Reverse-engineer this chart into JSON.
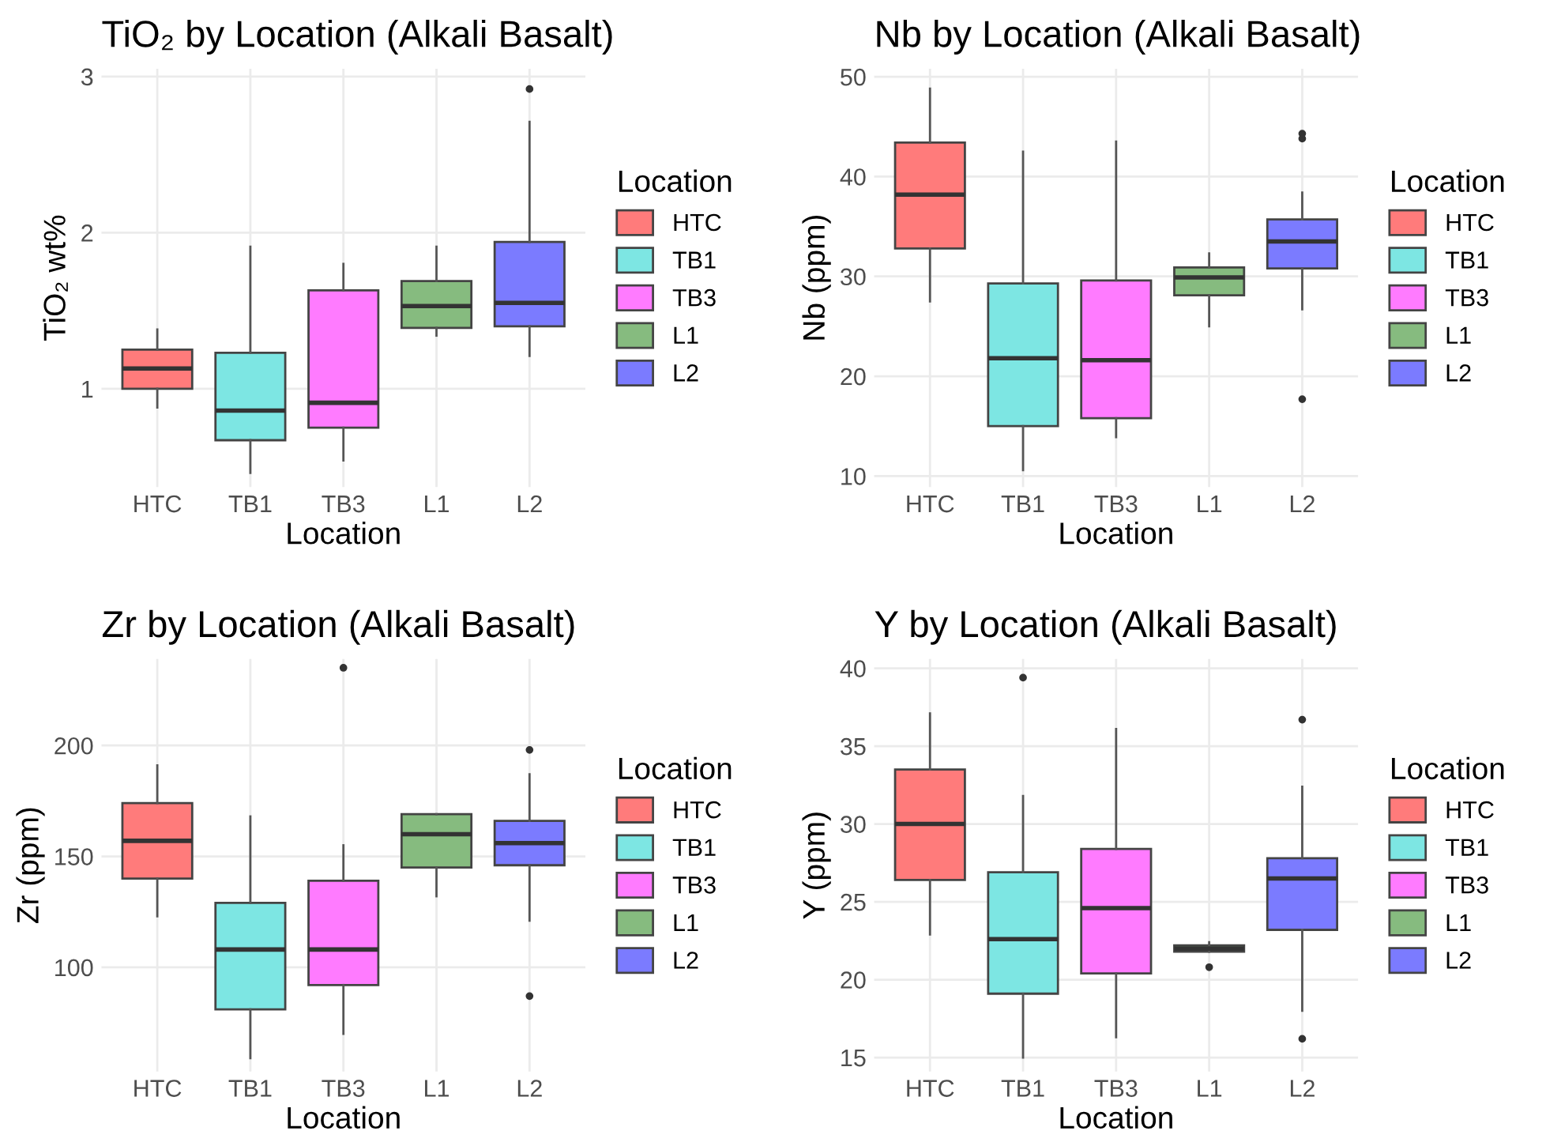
{
  "chart_data": [
    {
      "type": "box",
      "title": "TiO₂ by Location (Alkali Basalt)",
      "xlabel": "Location",
      "ylabel": "TiO₂ wt%",
      "legend_title": "Location",
      "legend": "right",
      "grid": true,
      "categories": [
        "HTC",
        "TB1",
        "TB3",
        "L1",
        "L2"
      ],
      "ylim": [
        0.37,
        3.05
      ],
      "yticks": [
        1,
        2,
        3
      ],
      "series": [
        {
          "name": "HTC",
          "color": "#ff7b7b",
          "boxes": [
            {
              "low": 0.88,
              "q1": 1.0,
              "median": 1.13,
              "q3": 1.25,
              "high": 1.38
            },
            null,
            null,
            null,
            null
          ]
        },
        {
          "name": "TB1",
          "color": "#7de6e3",
          "boxes": [
            null,
            {
              "low": 0.46,
              "q1": 0.67,
              "median": 0.86,
              "q3": 1.23,
              "high": 1.91
            },
            null,
            null,
            null
          ]
        },
        {
          "name": "TB3",
          "color": "#ff7bff",
          "boxes": [
            null,
            null,
            {
              "low": 0.54,
              "q1": 0.75,
              "median": 0.91,
              "q3": 1.63,
              "high": 1.8
            },
            null,
            null
          ]
        },
        {
          "name": "L1",
          "color": "#86bb7f",
          "boxes": [
            null,
            null,
            null,
            {
              "low": 1.34,
              "q1": 1.39,
              "median": 1.53,
              "q3": 1.69,
              "high": 1.91
            },
            null
          ]
        },
        {
          "name": "L2",
          "color": "#7b7bff",
          "boxes": [
            null,
            null,
            null,
            null,
            {
              "low": 1.21,
              "q1": 1.4,
              "median": 1.55,
              "q3": 1.94,
              "high": 2.71,
              "outliers": [
                2.92
              ]
            }
          ]
        }
      ]
    },
    {
      "type": "box",
      "title": "Nb by Location (Alkali Basalt)",
      "xlabel": "Location",
      "ylabel": "Nb (ppm)",
      "legend_title": "Location",
      "legend": "right",
      "grid": true,
      "categories": [
        "HTC",
        "TB1",
        "TB3",
        "L1",
        "L2"
      ],
      "ylim": [
        8.9,
        50.8
      ],
      "yticks": [
        10,
        20,
        30,
        40,
        50
      ],
      "series": [
        {
          "name": "HTC",
          "color": "#ff7b7b",
          "boxes": [
            {
              "low": 27.5,
              "q1": 32.8,
              "median": 38.2,
              "q3": 43.4,
              "high": 48.8
            },
            null,
            null,
            null,
            null
          ]
        },
        {
          "name": "TB1",
          "color": "#7de6e3",
          "boxes": [
            null,
            {
              "low": 10.6,
              "q1": 15.0,
              "median": 21.8,
              "q3": 29.3,
              "high": 42.5
            },
            null,
            null,
            null
          ]
        },
        {
          "name": "TB3",
          "color": "#ff7bff",
          "boxes": [
            null,
            null,
            {
              "low": 13.9,
              "q1": 15.8,
              "median": 21.6,
              "q3": 29.6,
              "high": 43.5
            },
            null,
            null
          ]
        },
        {
          "name": "L1",
          "color": "#86bb7f",
          "boxes": [
            null,
            null,
            null,
            {
              "low": 25.0,
              "q1": 28.1,
              "median": 29.9,
              "q3": 30.9,
              "high": 32.3
            },
            null
          ]
        },
        {
          "name": "L2",
          "color": "#7b7bff",
          "boxes": [
            null,
            null,
            null,
            null,
            {
              "low": 26.7,
              "q1": 30.8,
              "median": 33.5,
              "q3": 35.7,
              "high": 38.4,
              "outliers": [
                44.3,
                43.8,
                17.7
              ]
            }
          ]
        }
      ]
    },
    {
      "type": "box",
      "title": "Zr by Location (Alkali Basalt)",
      "xlabel": "Location",
      "ylabel": "Zr (ppm)",
      "legend_title": "Location",
      "legend": "right",
      "grid": true,
      "categories": [
        "HTC",
        "TB1",
        "TB3",
        "L1",
        "L2"
      ],
      "ylim": [
        53,
        239
      ],
      "yticks": [
        100,
        150,
        200
      ],
      "series": [
        {
          "name": "HTC",
          "color": "#ff7b7b",
          "boxes": [
            {
              "low": 123,
              "q1": 140,
              "median": 157,
              "q3": 174,
              "high": 191
            },
            null,
            null,
            null,
            null
          ]
        },
        {
          "name": "TB1",
          "color": "#7de6e3",
          "boxes": [
            null,
            {
              "low": 59,
              "q1": 81,
              "median": 108,
              "q3": 129,
              "high": 168
            },
            null,
            null,
            null
          ]
        },
        {
          "name": "TB3",
          "color": "#ff7bff",
          "boxes": [
            null,
            null,
            {
              "low": 70,
              "q1": 92,
              "median": 108,
              "q3": 139,
              "high": 155,
              "outliers": [
                235
              ]
            },
            null,
            null
          ]
        },
        {
          "name": "L1",
          "color": "#86bb7f",
          "boxes": [
            null,
            null,
            null,
            {
              "low": 132,
              "q1": 145,
              "median": 160,
              "q3": 169,
              "high": 169
            },
            null
          ]
        },
        {
          "name": "L2",
          "color": "#7b7bff",
          "boxes": [
            null,
            null,
            null,
            null,
            {
              "low": 121,
              "q1": 146,
              "median": 156,
              "q3": 166,
              "high": 187,
              "outliers": [
                198,
                87
              ]
            }
          ]
        }
      ]
    },
    {
      "type": "box",
      "title": "Y by Location (Alkali Basalt)",
      "xlabel": "Location",
      "ylabel": "Y (ppm)",
      "legend_title": "Location",
      "legend": "right",
      "grid": true,
      "categories": [
        "HTC",
        "TB1",
        "TB3",
        "L1",
        "L2"
      ],
      "ylim": [
        14.1,
        40.6
      ],
      "yticks": [
        15,
        20,
        25,
        30,
        35,
        40
      ],
      "series": [
        {
          "name": "HTC",
          "color": "#ff7b7b",
          "boxes": [
            {
              "low": 22.9,
              "q1": 26.4,
              "median": 30.0,
              "q3": 33.5,
              "high": 37.1
            },
            null,
            null,
            null,
            null
          ]
        },
        {
          "name": "TB1",
          "color": "#7de6e3",
          "boxes": [
            null,
            {
              "low": 15.0,
              "q1": 19.1,
              "median": 22.6,
              "q3": 26.9,
              "high": 31.8,
              "outliers": [
                39.4
              ]
            },
            null,
            null,
            null
          ]
        },
        {
          "name": "TB3",
          "color": "#ff7bff",
          "boxes": [
            null,
            null,
            {
              "low": 16.3,
              "q1": 20.4,
              "median": 24.6,
              "q3": 28.4,
              "high": 36.1
            },
            null,
            null
          ]
        },
        {
          "name": "L1",
          "color": "#86bb7f",
          "boxes": [
            null,
            null,
            null,
            {
              "low": 21.8,
              "q1": 21.8,
              "median": 22.0,
              "q3": 22.2,
              "high": 22.4,
              "outliers": [
                20.8
              ]
            },
            null
          ]
        },
        {
          "name": "L2",
          "color": "#7b7bff",
          "boxes": [
            null,
            null,
            null,
            null,
            {
              "low": 18.0,
              "q1": 23.2,
              "median": 26.5,
              "q3": 27.8,
              "high": 32.4,
              "outliers": [
                36.7,
                16.2
              ]
            }
          ]
        }
      ]
    }
  ]
}
